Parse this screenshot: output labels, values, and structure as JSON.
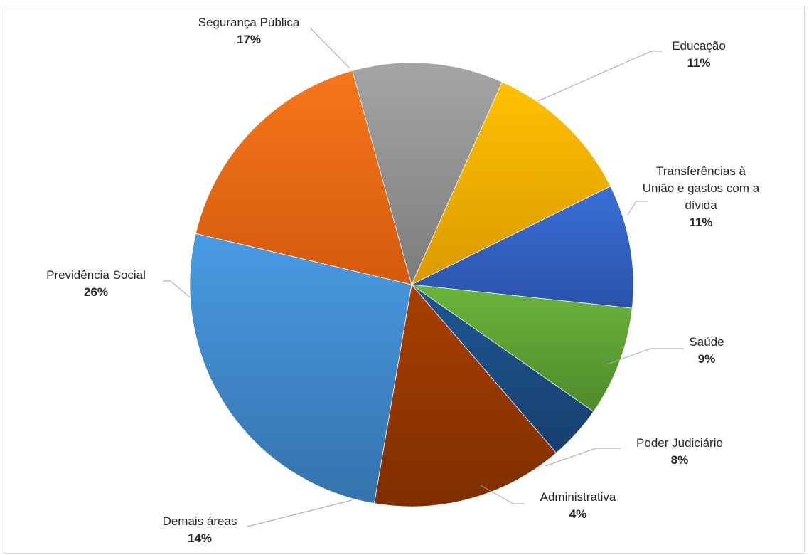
{
  "chart_data": {
    "type": "pie",
    "title": "",
    "legend": "none",
    "data_labels": "outside-with-leader-lines",
    "categories": [
      "Educação",
      "Transferências à União e gastos com a dívida",
      "Saúde",
      "Poder Judiciário",
      "Administrativa",
      "Demais áreas",
      "Previdência Social",
      "Segurança Pública"
    ],
    "values": [
      11,
      11,
      9,
      8,
      4,
      14,
      26,
      17
    ],
    "labels": [
      {
        "lines": [
          "Educação"
        ],
        "percent": "11%"
      },
      {
        "lines": [
          "Transferências à",
          "União e gastos com a",
          "dívida"
        ],
        "percent": "11%"
      },
      {
        "lines": [
          "Saúde"
        ],
        "percent": "9%"
      },
      {
        "lines": [
          "Poder Judiciário"
        ],
        "percent": "8%"
      },
      {
        "lines": [
          "Administrativa"
        ],
        "percent": "4%"
      },
      {
        "lines": [
          "Demais áreas"
        ],
        "percent": "14%"
      },
      {
        "lines": [
          "Previdência Social"
        ],
        "percent": "26%"
      },
      {
        "lines": [
          "Segurança Pública"
        ],
        "percent": "17%"
      }
    ],
    "colors": [
      [
        "#a5a5a5",
        "#7c7c7c"
      ],
      [
        "#ffc000",
        "#d99a00"
      ],
      [
        "#3a6fd8",
        "#2a52a8"
      ],
      [
        "#6cb43c",
        "#4f8a2a"
      ],
      [
        "#1f5794",
        "#173f6e"
      ],
      [
        "#a83f00",
        "#7e2e00"
      ],
      [
        "#4a9be4",
        "#3472ac"
      ],
      [
        "#f8761c",
        "#d35a0c"
      ]
    ]
  }
}
